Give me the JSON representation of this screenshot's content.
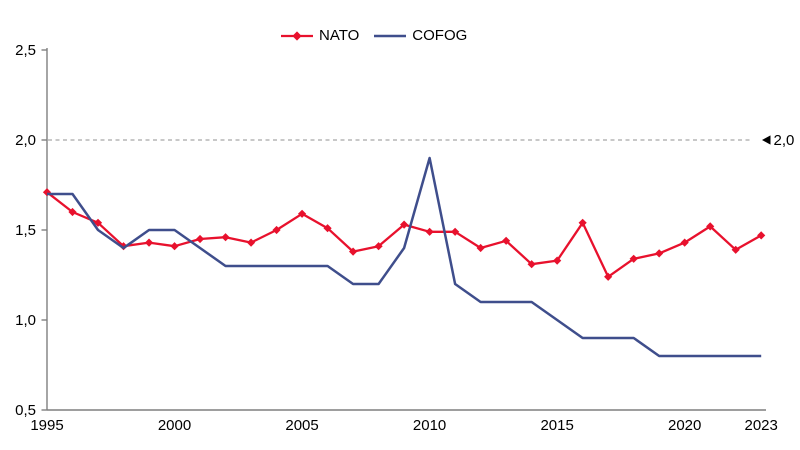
{
  "legend": {
    "items": [
      {
        "label": "NATO",
        "color": "#e8112d",
        "marker": "diamond"
      },
      {
        "label": "COFOG",
        "color": "#3f4e8c",
        "marker": "line"
      }
    ]
  },
  "annotation": {
    "reference_value_label": "2,0"
  },
  "chart_data": {
    "type": "line",
    "x": [
      1995,
      1996,
      1997,
      1998,
      1999,
      2000,
      2001,
      2002,
      2003,
      2004,
      2005,
      2006,
      2007,
      2008,
      2009,
      2010,
      2011,
      2012,
      2013,
      2014,
      2015,
      2016,
      2017,
      2018,
      2019,
      2020,
      2021,
      2022,
      2023
    ],
    "series": [
      {
        "name": "NATO",
        "color": "#e8112d",
        "marker": "diamond",
        "values": [
          1.71,
          1.6,
          1.54,
          1.41,
          1.43,
          1.41,
          1.45,
          1.46,
          1.43,
          1.5,
          1.59,
          1.51,
          1.38,
          1.41,
          1.53,
          1.49,
          1.49,
          1.4,
          1.44,
          1.31,
          1.33,
          1.54,
          1.24,
          1.34,
          1.37,
          1.43,
          1.52,
          1.39,
          1.47
        ]
      },
      {
        "name": "COFOG",
        "color": "#3f4e8c",
        "marker": "none",
        "values": [
          1.7,
          1.7,
          1.5,
          1.4,
          1.5,
          1.5,
          1.4,
          1.3,
          1.3,
          1.3,
          1.3,
          1.3,
          1.2,
          1.2,
          1.4,
          1.9,
          1.2,
          1.1,
          1.1,
          1.1,
          1.0,
          0.9,
          0.9,
          0.9,
          0.8,
          0.8,
          0.8,
          0.8,
          0.8
        ]
      }
    ],
    "title": "",
    "xlabel": "",
    "ylabel": "",
    "xlim": [
      1995,
      2023
    ],
    "ylim": [
      0.5,
      2.5
    ],
    "xticks": [
      1995,
      2000,
      2005,
      2010,
      2015,
      2020,
      2023
    ],
    "yticks": [
      2.5,
      2.0,
      1.5,
      1.0,
      0.5
    ],
    "ytick_labels": [
      "2,5",
      "2,0",
      "1,5",
      "1,0",
      "0,5"
    ],
    "decimal_separator": ",",
    "grid": false,
    "legend_position": "top-center",
    "reference_line": {
      "y": 2.0,
      "label": "2,0",
      "style": "dashed",
      "color": "#a8a8a8",
      "arrow": "left-triangle"
    },
    "axis_color": "#7f7f7f"
  }
}
